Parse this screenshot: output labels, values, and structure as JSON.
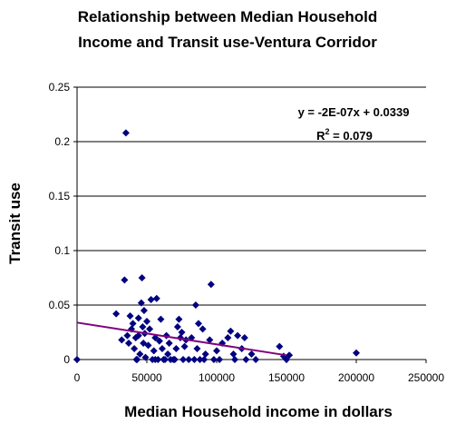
{
  "chart_data": {
    "type": "scatter",
    "title_lines": [
      "Relationship between Median Household",
      "Income and Transit use-Ventura Corridor"
    ],
    "xlabel": "Median Household income in dollars",
    "ylabel": "Transit use",
    "xlim": [
      0,
      250000
    ],
    "ylim": [
      0,
      0.25
    ],
    "x_ticks": [
      "0",
      "50000",
      "100000",
      "150000",
      "200000",
      "250000"
    ],
    "y_ticks": [
      "0",
      "0.05",
      "0.1",
      "0.15",
      "0.2",
      "0.25"
    ],
    "grid": "horizontal",
    "legend": "none",
    "marker_color": "#000080",
    "trendline_color": "#800080",
    "trendline": {
      "equation": "y = -2E-07x + 0.0339",
      "r2_prefix": "R",
      "r2_exp": "2",
      "r2_value": " = 0.079",
      "slope": -2e-07,
      "intercept": 0.0339,
      "x_range": [
        0,
        150000
      ]
    },
    "points": [
      [
        0,
        0
      ],
      [
        28000,
        0.042
      ],
      [
        32000,
        0.018
      ],
      [
        34000,
        0.073
      ],
      [
        35000,
        0.208
      ],
      [
        36000,
        0.022
      ],
      [
        37000,
        0.015
      ],
      [
        38000,
        0.04
      ],
      [
        39000,
        0.028
      ],
      [
        40000,
        0.033
      ],
      [
        41000,
        0.01
      ],
      [
        42000,
        0.02
      ],
      [
        43000,
        0.0
      ],
      [
        44000,
        0.038
      ],
      [
        45000,
        0.005
      ],
      [
        46000,
        0.052
      ],
      [
        46500,
        0.075
      ],
      [
        47000,
        0.03
      ],
      [
        47500,
        0.015
      ],
      [
        48000,
        0.045
      ],
      [
        48500,
        0.024
      ],
      [
        49000,
        0.002
      ],
      [
        50000,
        0.035
      ],
      [
        51000,
        0.013
      ],
      [
        52000,
        0.028
      ],
      [
        53000,
        0.055
      ],
      [
        54000,
        0.0
      ],
      [
        55000,
        0.008
      ],
      [
        56000,
        0.02
      ],
      [
        57000,
        0.056
      ],
      [
        58000,
        0.0
      ],
      [
        59000,
        0.017
      ],
      [
        60000,
        0.037
      ],
      [
        61000,
        0.01
      ],
      [
        62000,
        0.0
      ],
      [
        64000,
        0.022
      ],
      [
        65000,
        0.005
      ],
      [
        66000,
        0.015
      ],
      [
        67000,
        0.0
      ],
      [
        69000,
        0.0
      ],
      [
        71000,
        0.01
      ],
      [
        72000,
        0.03
      ],
      [
        73000,
        0.037
      ],
      [
        74000,
        0.02
      ],
      [
        75000,
        0.025
      ],
      [
        76000,
        0.0
      ],
      [
        77000,
        0.012
      ],
      [
        78000,
        0.018
      ],
      [
        80000,
        0.0
      ],
      [
        82000,
        0.02
      ],
      [
        84000,
        0.0
      ],
      [
        85000,
        0.05
      ],
      [
        86000,
        0.01
      ],
      [
        87000,
        0.033
      ],
      [
        88000,
        0.0
      ],
      [
        90000,
        0.028
      ],
      [
        91000,
        0.0
      ],
      [
        92000,
        0.005
      ],
      [
        95000,
        0.018
      ],
      [
        96000,
        0.069
      ],
      [
        98000,
        0.0
      ],
      [
        100000,
        0.008
      ],
      [
        102000,
        0.0
      ],
      [
        104000,
        0.015
      ],
      [
        108000,
        0.02
      ],
      [
        110000,
        0.026
      ],
      [
        112000,
        0.005
      ],
      [
        113000,
        0.0
      ],
      [
        115000,
        0.022
      ],
      [
        118000,
        0.01
      ],
      [
        120000,
        0.02
      ],
      [
        121000,
        0.0
      ],
      [
        125000,
        0.005
      ],
      [
        128000,
        0.0
      ],
      [
        145000,
        0.012
      ],
      [
        148000,
        0.003
      ],
      [
        150000,
        0.0
      ],
      [
        152000,
        0.004
      ],
      [
        200000,
        0.006
      ],
      [
        42500,
        0.0
      ],
      [
        56000,
        0.0
      ],
      [
        63000,
        0.0
      ],
      [
        70000,
        0.0
      ],
      [
        44000,
        0.022
      ]
    ]
  }
}
